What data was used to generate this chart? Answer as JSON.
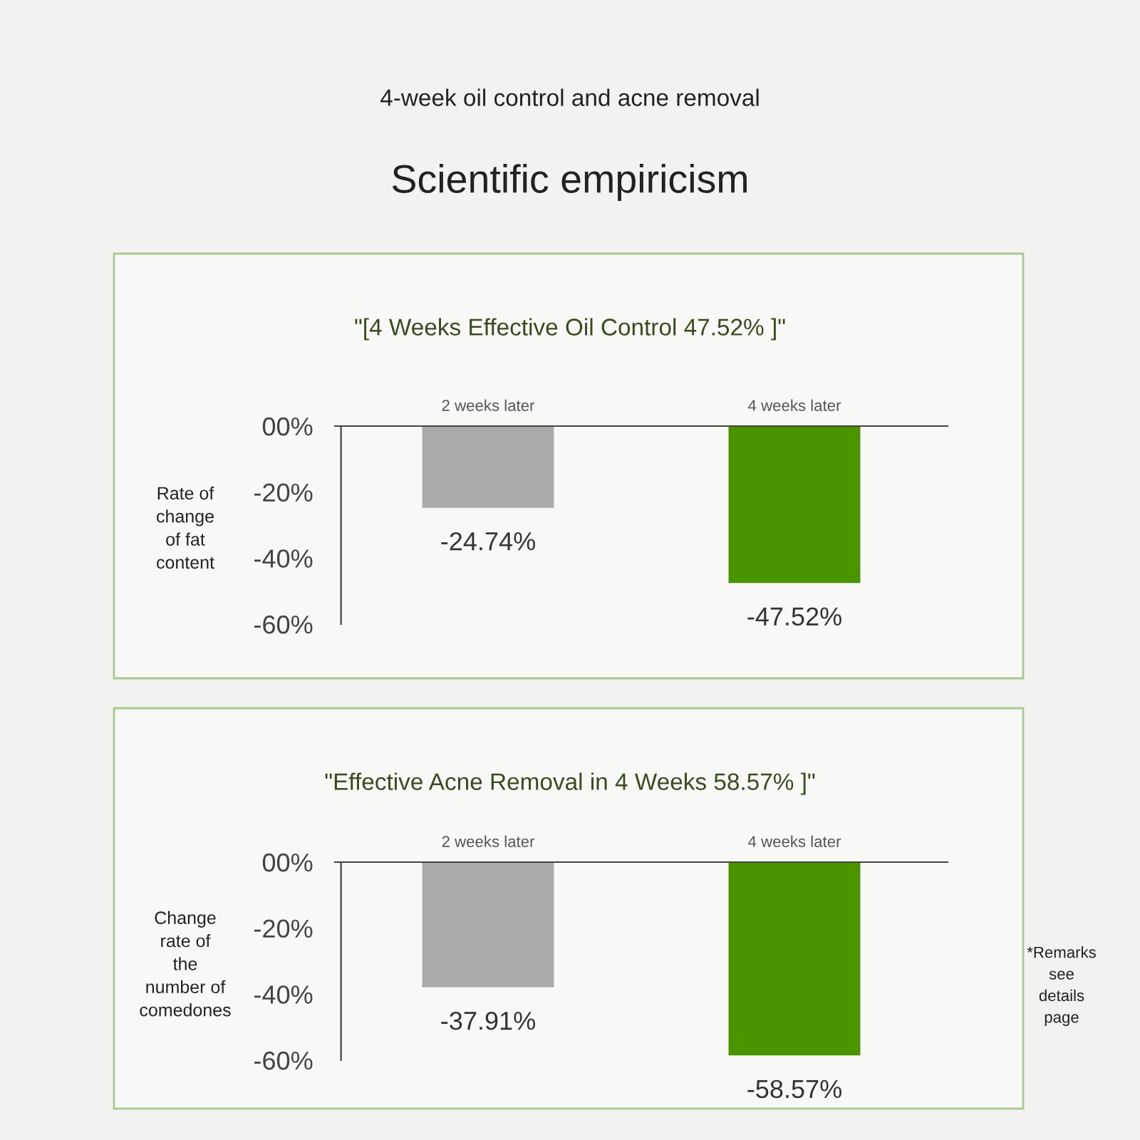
{
  "chart_data": [
    {
      "type": "bar",
      "title": "\"[4 Weeks Effective Oil Control 47.52% ]\"",
      "ylabel": "Rate of\nchange\nof fat\ncontent",
      "annotations": [
        "4-week oil control and acne removal",
        "Scientific empiricism"
      ],
      "categories": [
        "2 weeks later",
        "4 weeks later"
      ],
      "values": [
        -24.74,
        -47.52
      ],
      "colors": [
        "#aaaaaa",
        "#4a9400"
      ],
      "value_labels": [
        "-24.74%",
        "-47.52%"
      ],
      "ylim": [
        -60,
        0
      ],
      "yticks": [
        {
          "value": 0,
          "label": "00%"
        },
        {
          "value": -20,
          "label": "-20%"
        },
        {
          "value": -40,
          "label": "-40%"
        },
        {
          "value": -60,
          "label": "-60%"
        }
      ]
    },
    {
      "type": "bar",
      "title": "\"Effective Acne Removal in 4 Weeks 58.57% ]\"",
      "ylabel": "Change\nrate of\nthe\nnumber of\ncomedones",
      "annotations": [
        "*Remarks\nsee\ndetails\npage"
      ],
      "categories": [
        "2 weeks later",
        "4 weeks later"
      ],
      "values": [
        -37.91,
        -58.57
      ],
      "colors": [
        "#aaaaaa",
        "#4a9400"
      ],
      "value_labels": [
        "-37.91%",
        "-58.57%"
      ],
      "ylim": [
        -60,
        0
      ],
      "yticks": [
        {
          "value": 0,
          "label": "00%"
        },
        {
          "value": -20,
          "label": "-20%"
        },
        {
          "value": -40,
          "label": "-40%"
        },
        {
          "value": -60,
          "label": "-60%"
        }
      ]
    }
  ]
}
